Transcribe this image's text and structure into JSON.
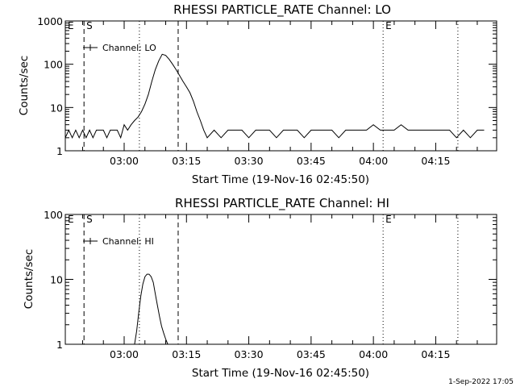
{
  "footer": {
    "date": "1-Sep-2022 17:05"
  },
  "chart_data": [
    {
      "type": "line",
      "title": "RHESSI PARTICLE_RATE Channel: LO",
      "xlabel": "Start Time (19-Nov-16 02:45:50)",
      "ylabel": "Counts/sec",
      "y_scale": "log",
      "ylim": [
        1,
        1000
      ],
      "xlim": [
        "02:45:50",
        "04:29:40"
      ],
      "x_ticks": [
        "03:00",
        "03:15",
        "03:30",
        "03:45",
        "04:00",
        "04:15"
      ],
      "y_ticks": [
        "1",
        "10",
        "100",
        "1000"
      ],
      "legend": {
        "label": "Channel: LO",
        "position": "top-left"
      },
      "markers": [
        {
          "label": "E",
          "time": "02:45:50",
          "style": "none"
        },
        {
          "label": "S",
          "time": "02:50:20",
          "style": "dashed"
        },
        {
          "time": "03:03:40",
          "style": "dotted"
        },
        {
          "time": "03:13:00",
          "style": "dashed"
        },
        {
          "label": "E",
          "time": "04:02:20",
          "style": "dotted"
        },
        {
          "time": "04:20:20",
          "style": "dotted"
        }
      ],
      "series": [
        {
          "x": [
            "02:45:50",
            "02:46:40",
            "02:47:30",
            "02:48:20",
            "02:49:10",
            "02:50:00",
            "02:50:50",
            "02:51:40",
            "02:52:30",
            "02:53:20",
            "02:54:10",
            "02:55:00",
            "02:55:50",
            "02:56:40",
            "02:57:30",
            "02:58:20",
            "02:59:10",
            "03:00:00",
            "03:00:50",
            "03:01:40",
            "03:02:30",
            "03:03:20",
            "03:04:10",
            "03:05:00",
            "03:05:50",
            "03:06:40",
            "03:07:30",
            "03:08:20",
            "03:09:10",
            "03:10:00",
            "03:10:50",
            "03:11:40",
            "03:12:30",
            "03:13:20",
            "03:14:10",
            "03:15:00",
            "03:15:50",
            "03:16:40",
            "03:17:30",
            "03:18:20",
            "03:19:10",
            "03:20:00",
            "03:21:40",
            "03:23:20",
            "03:25:00",
            "03:26:40",
            "03:28:20",
            "03:30:00",
            "03:31:40",
            "03:33:20",
            "03:35:00",
            "03:36:40",
            "03:38:20",
            "03:40:00",
            "03:41:40",
            "03:43:20",
            "03:45:00",
            "03:46:40",
            "03:48:20",
            "03:50:00",
            "03:51:40",
            "03:53:20",
            "03:55:00",
            "03:56:40",
            "03:58:20",
            "04:00:00",
            "04:01:40",
            "04:03:20",
            "04:05:00",
            "04:06:40",
            "04:08:20",
            "04:10:00",
            "04:11:40",
            "04:13:20",
            "04:15:00",
            "04:16:40",
            "04:18:20",
            "04:20:00",
            "04:21:40",
            "04:23:20",
            "04:25:00",
            "04:26:40"
          ],
          "y": [
            2,
            3,
            2,
            3,
            2,
            3,
            2,
            3,
            2,
            3,
            3,
            3,
            2,
            3,
            3,
            3,
            2,
            4,
            3,
            4,
            5,
            6,
            8,
            12,
            20,
            40,
            75,
            120,
            170,
            160,
            130,
            100,
            75,
            55,
            40,
            30,
            22,
            14,
            8,
            5,
            3,
            2,
            3,
            2,
            3,
            3,
            3,
            2,
            3,
            3,
            3,
            2,
            3,
            3,
            3,
            2,
            3,
            3,
            3,
            3,
            2,
            3,
            3,
            3,
            3,
            4,
            3,
            3,
            3,
            4,
            3,
            3,
            3,
            3,
            3,
            3,
            3,
            2,
            3,
            2,
            3,
            3
          ]
        }
      ]
    },
    {
      "type": "line",
      "title": "RHESSI PARTICLE_RATE Channel: HI",
      "xlabel": "Start Time (19-Nov-16 02:45:50)",
      "ylabel": "Counts/sec",
      "y_scale": "log",
      "ylim": [
        1,
        100
      ],
      "xlim": [
        "02:45:50",
        "04:29:40"
      ],
      "x_ticks": [
        "03:00",
        "03:15",
        "03:30",
        "03:45",
        "04:00",
        "04:15"
      ],
      "y_ticks": [
        "1",
        "10",
        "100"
      ],
      "legend": {
        "label": "Channel: HI",
        "position": "top-left"
      },
      "markers": [
        {
          "label": "E",
          "time": "02:45:50",
          "style": "none"
        },
        {
          "label": "S",
          "time": "02:50:20",
          "style": "dashed"
        },
        {
          "time": "03:03:40",
          "style": "dotted"
        },
        {
          "time": "03:13:00",
          "style": "dashed"
        },
        {
          "label": "E",
          "time": "04:02:20",
          "style": "dotted"
        },
        {
          "time": "04:20:20",
          "style": "dotted"
        }
      ],
      "series": [
        {
          "x": [
            "03:02:30",
            "03:03:00",
            "03:03:30",
            "03:04:00",
            "03:04:30",
            "03:05:00",
            "03:05:30",
            "03:06:00",
            "03:06:30",
            "03:07:00",
            "03:07:30",
            "03:08:00",
            "03:08:30",
            "03:09:00",
            "03:09:30",
            "03:10:00",
            "03:10:30"
          ],
          "y": [
            1,
            1.6,
            3,
            5.5,
            8.5,
            11,
            12,
            12,
            11,
            9,
            6,
            4,
            2.7,
            1.9,
            1.5,
            1.2,
            1
          ]
        }
      ]
    }
  ]
}
